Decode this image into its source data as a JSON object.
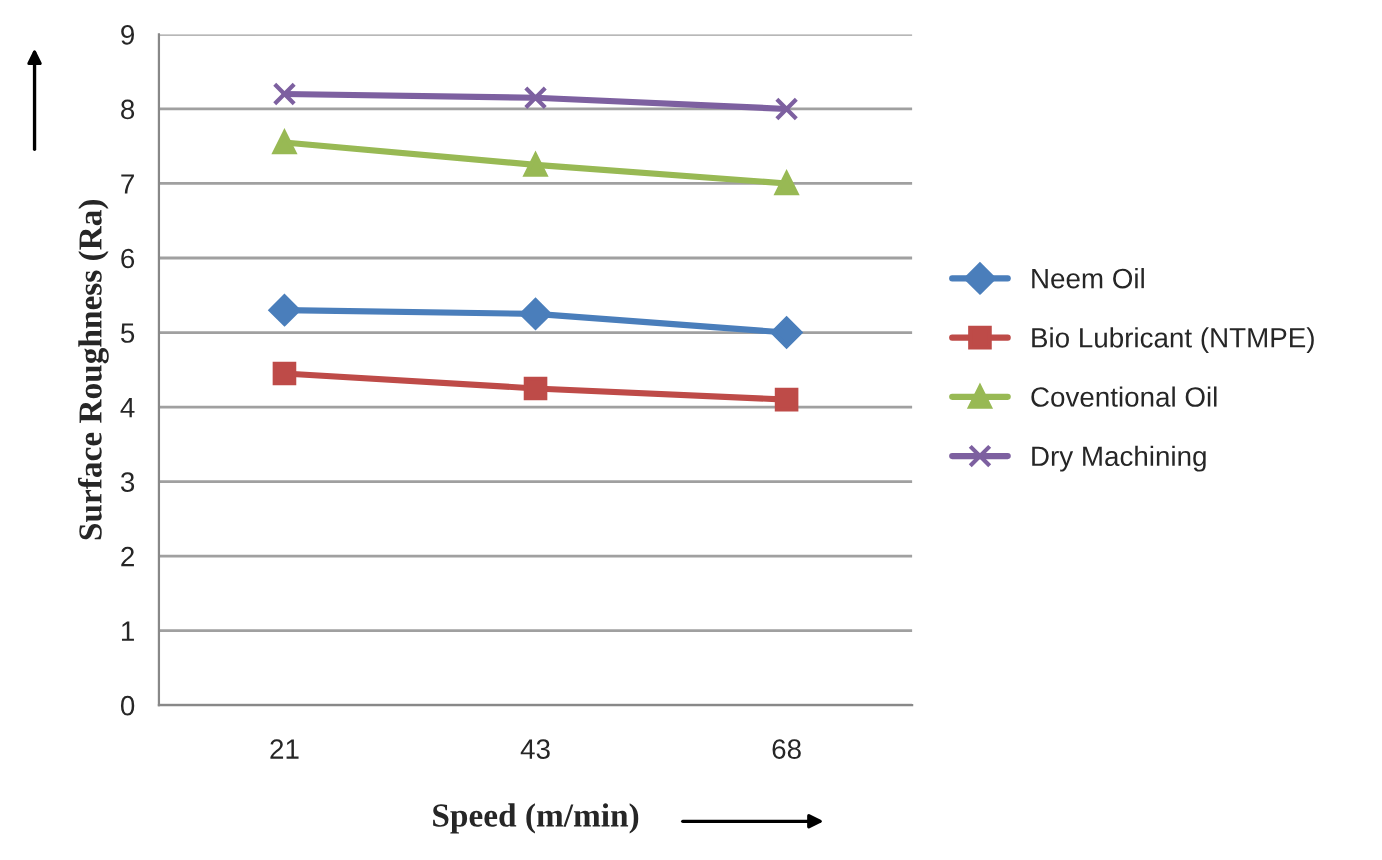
{
  "chart_data": {
    "type": "line",
    "xlabel": "Speed (m/min)",
    "ylabel": "Surface Roughness (Ra)",
    "categories": [
      "21",
      "43",
      "68"
    ],
    "series": [
      {
        "name": "Neem Oil",
        "color": "#4a7ebb",
        "marker": "diamond",
        "values": [
          5.3,
          5.25,
          5.0
        ]
      },
      {
        "name": "Bio Lubricant (NTMPE)",
        "color": "#be4b48",
        "marker": "square",
        "values": [
          4.45,
          4.25,
          4.1
        ]
      },
      {
        "name": "Coventional Oil",
        "color": "#98b954",
        "marker": "triangle",
        "values": [
          7.55,
          7.25,
          7.0
        ]
      },
      {
        "name": "Dry Machining",
        "color": "#7d60a0",
        "marker": "cross",
        "values": [
          8.2,
          8.15,
          8.0
        ]
      }
    ],
    "ylim": [
      0,
      9
    ],
    "yticks": [
      0,
      1,
      2,
      3,
      4,
      5,
      6,
      7,
      8,
      9
    ],
    "grid": "y",
    "legend": "right",
    "line_style": "solid"
  }
}
